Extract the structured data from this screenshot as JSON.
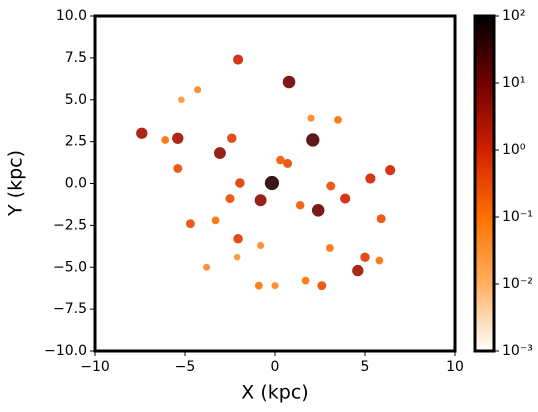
{
  "chart_data": {
    "type": "density-map",
    "xlabel": "X (kpc)",
    "ylabel": "Y (kpc)",
    "xlim": [
      -10,
      10
    ],
    "ylim": [
      -10,
      10
    ],
    "xticks": [
      {
        "value": -10,
        "label": "−10"
      },
      {
        "value": -5,
        "label": "−5"
      },
      0,
      5,
      10
    ],
    "yticks": [
      {
        "value": 10,
        "label": "10.0"
      },
      {
        "value": 7.5,
        "label": "7.5"
      },
      {
        "value": 5,
        "label": "5.0"
      },
      {
        "value": 2.5,
        "label": "2.5"
      },
      {
        "value": 0,
        "label": "0.0"
      },
      {
        "value": -2.5,
        "label": "−2.5"
      },
      {
        "value": -5,
        "label": "−5.0"
      },
      {
        "value": -7.5,
        "label": "−7.5"
      },
      {
        "value": -10,
        "label": "−10.0"
      }
    ],
    "colorbar": {
      "scale": "log",
      "lim": [
        0.001,
        100
      ],
      "ticks": [
        {
          "value": 100,
          "label": "10²"
        },
        {
          "value": 10,
          "label": "10¹"
        },
        {
          "value": 1,
          "label": "10⁰"
        },
        {
          "value": 0.1,
          "label": "10⁻¹"
        },
        {
          "value": 0.01,
          "label": "10⁻²"
        },
        {
          "value": 0.001,
          "label": "10⁻³"
        }
      ],
      "colormap": [
        "#ffffff",
        "#ffb060",
        "#ff7000",
        "#d02000",
        "#700000",
        "#000000"
      ]
    },
    "points": {
      "x": [
        -0.17,
        0.78,
        2.1,
        -3.06,
        -7.4,
        -2.05,
        2.4,
        -0.8,
        -5.4,
        6.4,
        5.3,
        3.9,
        4.6,
        5.9,
        -4.7,
        -2.05,
        -1.95,
        -2.4,
        -5.4,
        0.7,
        3.1,
        2.6,
        1.7,
        3.05,
        5.0,
        5.8,
        -4.3,
        -5.2,
        3.5,
        2.0,
        -0.8,
        -3.8,
        -2.1,
        -0.9,
        -2.5,
        -3.3,
        1.4,
        0.3,
        -6.1,
        0.0
      ],
      "y": [
        0.03,
        6.06,
        2.6,
        1.82,
        3.0,
        7.4,
        -1.6,
        -1.0,
        2.7,
        0.8,
        0.3,
        -0.9,
        -5.2,
        -2.1,
        -2.4,
        -3.3,
        0.03,
        2.7,
        0.9,
        1.2,
        -0.15,
        -6.1,
        -5.8,
        -3.85,
        -4.4,
        -4.6,
        5.6,
        5.0,
        3.8,
        3.9,
        -3.7,
        -5.0,
        -4.4,
        -6.1,
        -0.9,
        -2.2,
        -1.3,
        1.4,
        2.6,
        -6.1
      ],
      "values": [
        50,
        10,
        20,
        5,
        3,
        1,
        10,
        5,
        3,
        1,
        1,
        1,
        3,
        0.3,
        0.3,
        0.5,
        0.5,
        0.5,
        0.3,
        0.3,
        0.3,
        0.3,
        0.1,
        0.1,
        0.5,
        0.1,
        0.05,
        0.03,
        0.1,
        0.05,
        0.05,
        0.05,
        0.03,
        0.1,
        0.3,
        0.1,
        0.2,
        0.2,
        0.1,
        0.05
      ]
    }
  }
}
